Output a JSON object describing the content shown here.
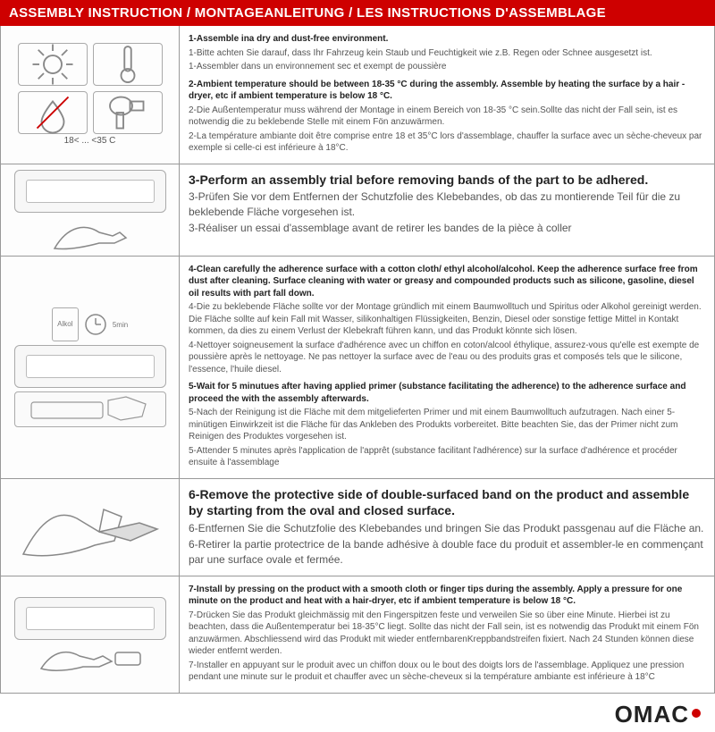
{
  "header": "ASSEMBLY INSTRUCTION / MONTAGEANLEITUNG / LES INSTRUCTIONS D'ASSEMBLAGE",
  "logo": "OMAC",
  "colors": {
    "brand_red": "#ce0000",
    "text_dark": "#222",
    "text_light": "#555"
  },
  "rows": [
    {
      "img_label_top": "18< ... <35 C",
      "lines": [
        {
          "bold": true,
          "text": "1-Assemble ina dry and dust-free environment."
        },
        {
          "bold": false,
          "text": "1-Bitte achten Sie darauf, dass Ihr Fahrzeug kein Staub und Feuchtigkeit wie z.B. Regen oder Schnee ausgesetzt ist."
        },
        {
          "bold": false,
          "text": "1-Assembler dans un environnement sec et exempt de poussière"
        },
        {
          "bold": true,
          "gap": true,
          "text": "2-Ambient temperature should be between 18-35 °C  during the assembly. Assemble by heating the surface by a hair -dryer, etc if ambient temperature is below 18 °C."
        },
        {
          "bold": false,
          "text": "2-Die Außentemperatur muss während der Montage in einem Bereich von 18-35 °C  sein.Sollte das nicht der Fall sein, ist es notwendig die zu beklebende Stelle mit einem Fön anzuwärmen."
        },
        {
          "bold": false,
          "text": "2-La température ambiante doit être comprise entre 18 et 35°C lors d'assemblage, chauffer la surface avec un sèche-cheveux par exemple si celle-ci est inférieure à 18°C."
        }
      ]
    },
    {
      "lines": [
        {
          "bold": true,
          "big": true,
          "text": "3-Perform an assembly trial before removing bands of the part to be adhered."
        },
        {
          "bold": false,
          "text": "3-Prüfen Sie vor dem Entfernen der Schutzfolie des Klebebandes, ob das zu montierende Teil für die zu beklebende Fläche vorgesehen ist."
        },
        {
          "bold": false,
          "text": "3-Réaliser un essai d'assemblage avant de retirer les bandes de la pièce à coller"
        }
      ]
    },
    {
      "timer": "5min",
      "box_label": "Alkol",
      "lines": [
        {
          "bold": true,
          "text": "4-Clean carefully the adherence surface with a cotton cloth/ ethyl alcohol/alcohol. Keep the adherence surface free from dust after cleaning. Surface cleaning with water or greasy and compounded products such as silicone, gasoline, diesel oil results with part fall down."
        },
        {
          "bold": false,
          "text": "4-Die zu beklebende Fläche sollte vor der Montage gründlich mit einem Baumwolltuch und Spiritus oder Alkohol gereinigt werden. Die Fläche sollte auf kein Fall mit Wasser, silikonhaltigen Flüssigkeiten, Benzin, Diesel oder sonstige fettige Mittel in Kontakt kommen, da dies zu einem Verlust der Klebekraft führen kann, und das Produkt könnte sich lösen."
        },
        {
          "bold": false,
          "text": "4-Nettoyer soigneusement la surface d'adhérence avec un chiffon en coton/alcool éthylique, assurez-vous qu'elle est exempte de poussière après le nettoyage. Ne pas nettoyer la surface avec de l'eau ou des produits gras et composés tels que le silicone, l'essence, l'huile diesel."
        },
        {
          "bold": true,
          "gap": true,
          "text": "5-Wait for 5 minutues after having applied primer (substance facilitating the adherence) to the adherence surface and proceed the with the assembly afterwards."
        },
        {
          "bold": false,
          "text": "5-Nach der Reinigung ist die Fläche mit dem mitgelieferten Primer und mit einem Baumwolltuch aufzutragen. Nach einer 5-minütigen Einwirkzeit ist die Fläche für das Ankleben des Produkts vorbereitet. Bitte beachten Sie, das der Primer nicht zum Reinigen des Produktes vorgesehen ist."
        },
        {
          "bold": false,
          "text": "5-Attender 5 minutes après l'application de l'apprêt (substance facilitant l'adhérence) sur la surface d'adhérence et procéder ensuite à l'assemblage"
        }
      ]
    },
    {
      "lines": [
        {
          "bold": true,
          "big": true,
          "text": "6-Remove the protective side of double-surfaced band on the product and assemble by starting from the oval and closed surface."
        },
        {
          "bold": false,
          "text": "6-Entfernen Sie die Schutzfolie des Klebebandes und bringen Sie das Produkt passgenau auf die Fläche an."
        },
        {
          "bold": false,
          "text": "6-Retirer la partie protectrice de la bande adhésive à double face du produit et assembler-le en commençant par une surface ovale et fermée."
        }
      ]
    },
    {
      "lines": [
        {
          "bold": true,
          "text": "7-Install by pressing on the product with a smooth cloth or finger tips during the assembly. Apply a pressure for one minute on the product and heat with a hair-dryer, etc if ambient temperature is below 18 °C."
        },
        {
          "bold": false,
          "text": "7-Drücken Sie das Produkt gleichmässig mit den Fingerspitzen feste und verweilen Sie so über eine Minute. Hierbei ist zu beachten, dass die Außentemperatur bei 18-35°C liegt. Sollte das nicht der Fall sein, ist es notwendig das Produkt mit einem Fön anzuwärmen. Abschliessend wird das Produkt mit wieder entfernbarenKreppbandstreifen fixiert. Nach 24 Stunden können diese wieder entfernt werden."
        },
        {
          "bold": false,
          "text": "7-Installer en appuyant sur le produit avec un chiffon doux ou le bout des doigts lors de l'assemblage. Appliquez une pression pendant une minute sur le produit et chauffer avec un sèche-cheveux si la température ambiante est inférieure à 18°C"
        }
      ]
    }
  ]
}
